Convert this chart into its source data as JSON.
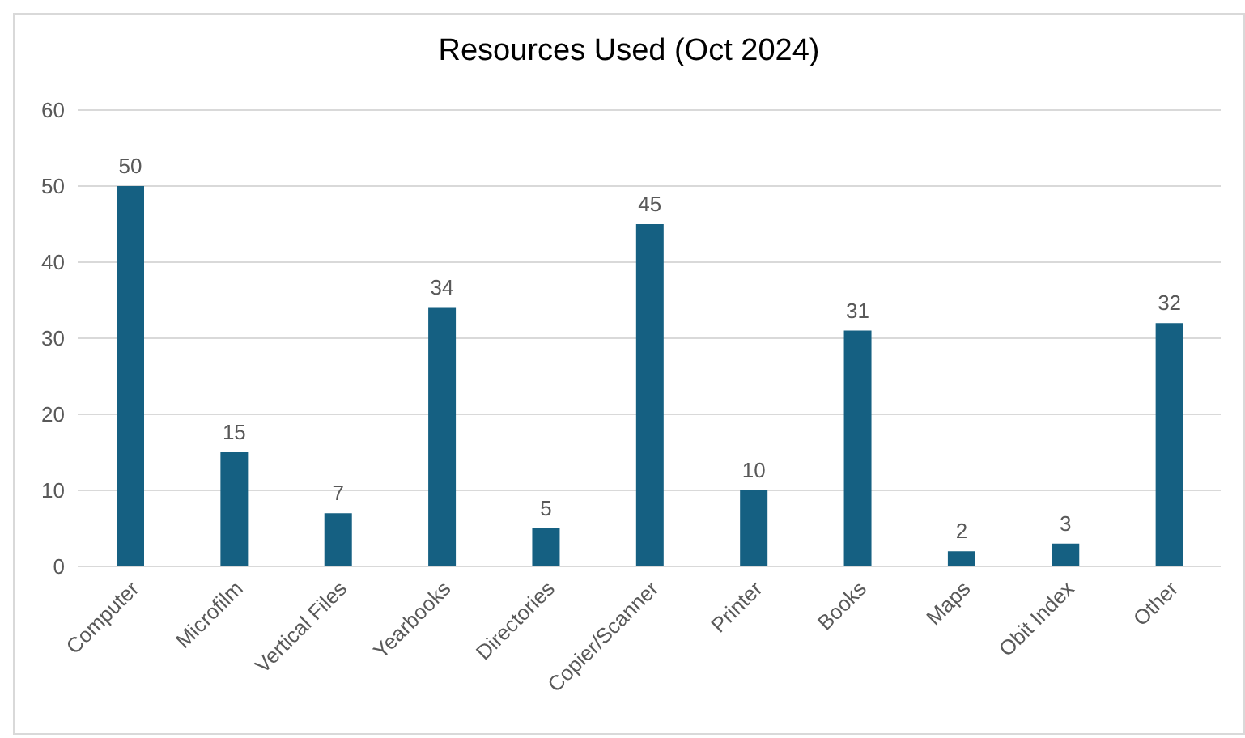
{
  "chart_data": {
    "type": "bar",
    "title": "Resources Used (Oct 2024)",
    "categories": [
      "Computer",
      "Microfilm",
      "Vertical Files",
      "Yearbooks",
      "Directories",
      "Copier/Scanner",
      "Printer",
      "Books",
      "Maps",
      "Obit Index",
      "Other"
    ],
    "values": [
      50,
      15,
      7,
      34,
      5,
      45,
      10,
      31,
      2,
      3,
      32
    ],
    "color": "#156082",
    "ylim": [
      0,
      60
    ],
    "yticks": [
      0,
      10,
      20,
      30,
      40,
      50,
      60
    ],
    "grid": "y",
    "data_labels": true
  }
}
